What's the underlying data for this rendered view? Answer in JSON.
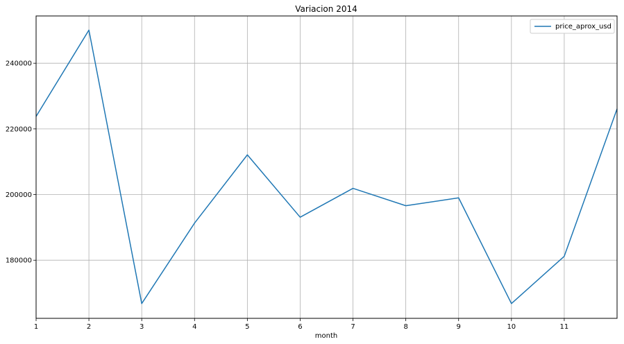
{
  "chart_data": {
    "type": "line",
    "title": "Variacion 2014",
    "xlabel": "month",
    "ylabel": "",
    "x": [
      1,
      2,
      3,
      4,
      5,
      6,
      7,
      8,
      9,
      10,
      11,
      12
    ],
    "x_tick_labels": [
      "1",
      "2",
      "3",
      "4",
      "5",
      "6",
      "7",
      "8",
      "9",
      "10",
      "11"
    ],
    "xlim": [
      1,
      12
    ],
    "y_ticks": [
      180000,
      200000,
      220000,
      240000
    ],
    "y_tick_labels": [
      "180000",
      "200000",
      "220000",
      "240000"
    ],
    "ylim": [
      162300,
      254400
    ],
    "grid": true,
    "legend_position": "top-right",
    "series": [
      {
        "name": "price_aprox_usd",
        "color": "#1f77b4",
        "values": [
          223800,
          250100,
          166800,
          191300,
          212100,
          193100,
          201900,
          196600,
          199000,
          166800,
          181200,
          226100
        ]
      }
    ]
  }
}
